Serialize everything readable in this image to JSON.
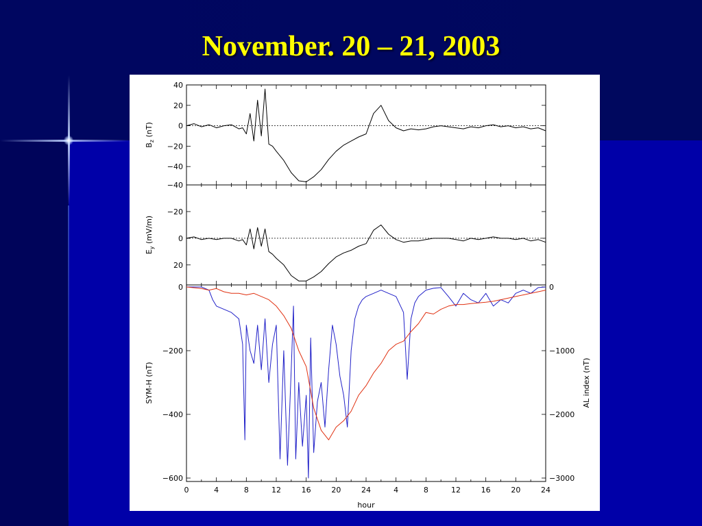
{
  "slide": {
    "title": "November. 20 – 21, 2003"
  },
  "colors": {
    "background": "#0000a8",
    "title": "#ffff00",
    "sym_h_line": "#2020c8",
    "al_index_line": "#e03010",
    "black_line": "#000000"
  },
  "chart_data": [
    {
      "type": "line",
      "panel": "top",
      "ylabel": "B_z (nT)",
      "ylim": [
        -58,
        40
      ],
      "yticks": [
        40,
        20,
        0,
        -20,
        -40
      ],
      "dashed_zero_line": true,
      "series": [
        {
          "x": [
            0,
            1,
            2,
            3,
            4,
            5,
            6,
            7,
            7.5,
            8,
            8.5,
            9,
            9.5,
            10,
            10.5,
            11,
            11.5,
            12,
            13,
            14,
            15,
            16,
            17,
            18,
            19,
            20,
            21,
            22,
            23,
            24,
            25,
            26,
            27,
            28,
            29,
            30,
            31,
            32,
            33,
            34,
            35,
            36,
            37,
            38,
            39,
            40,
            41,
            42,
            43,
            44,
            45,
            46,
            47,
            48
          ],
          "values": [
            0,
            2,
            -1,
            1,
            -2,
            0,
            1,
            -3,
            -2,
            -8,
            12,
            -15,
            25,
            -10,
            36,
            -18,
            -20,
            -25,
            -34,
            -46,
            -54,
            -55,
            -50,
            -43,
            -33,
            -25,
            -19,
            -15,
            -11,
            -8,
            12,
            20,
            5,
            -2,
            -5,
            -3,
            -4,
            -3,
            -1,
            0,
            -1,
            -2,
            -3,
            -1,
            -2,
            0,
            1,
            -1,
            0,
            -2,
            -1,
            -3,
            -2,
            -5
          ]
        }
      ]
    },
    {
      "type": "line",
      "panel": "middle",
      "ylabel": "E_y (mV/m)",
      "ylim": [
        -40,
        35
      ],
      "yticks": [
        -40,
        -20,
        0,
        20
      ],
      "y_inverted": true,
      "dashed_zero_line": true,
      "series": [
        {
          "x": [
            0,
            1,
            2,
            3,
            4,
            5,
            6,
            7,
            7.5,
            8,
            8.5,
            9,
            9.5,
            10,
            10.5,
            11,
            11.5,
            12,
            13,
            14,
            15,
            16,
            17,
            18,
            19,
            20,
            21,
            22,
            23,
            24,
            25,
            26,
            27,
            28,
            29,
            30,
            31,
            32,
            33,
            34,
            35,
            36,
            37,
            38,
            39,
            40,
            41,
            42,
            43,
            44,
            45,
            46,
            47,
            48
          ],
          "values": [
            0,
            -1,
            1,
            0,
            1,
            0,
            0,
            2,
            1,
            5,
            -7,
            8,
            -8,
            6,
            -7,
            10,
            12,
            15,
            20,
            28,
            32,
            32,
            29,
            25,
            19,
            14,
            11,
            9,
            6,
            4,
            -6,
            -10,
            -3,
            1,
            3,
            2,
            2,
            1,
            0,
            0,
            0,
            1,
            2,
            0,
            1,
            0,
            -1,
            0,
            0,
            1,
            0,
            2,
            1,
            3
          ]
        }
      ]
    },
    {
      "type": "line",
      "panel": "bottom",
      "xlabel": "hour",
      "ylabel": "SYM-H (nT)",
      "ylabel_right": "AL index (nT)",
      "xlim": [
        0,
        48
      ],
      "xtick_labels": [
        "0",
        "4",
        "8",
        "12",
        "16",
        "20",
        "24",
        "4",
        "8",
        "12",
        "16",
        "20",
        "24"
      ],
      "ylim_left": [
        -600,
        0
      ],
      "yticks_left": [
        0,
        -200,
        -400,
        -600
      ],
      "ylim_right": [
        -3000,
        0
      ],
      "yticks_right": [
        0,
        -1000,
        -2000,
        -3000
      ],
      "series": [
        {
          "axis": "right",
          "color": "#2020c8",
          "x": [
            0,
            1,
            2,
            3,
            3.5,
            4,
            5,
            6,
            7,
            7.5,
            7.8,
            8,
            8.5,
            9,
            9.5,
            10,
            10.5,
            11,
            11.5,
            12,
            12.5,
            13,
            13.5,
            14,
            14.3,
            14.6,
            15,
            15.5,
            16,
            16.3,
            16.6,
            17,
            17.5,
            18,
            18.5,
            19,
            19.5,
            20,
            20.5,
            21,
            21.5,
            22,
            22.5,
            23,
            23.5,
            24,
            25,
            26,
            27,
            28,
            29,
            29.5,
            30,
            30.5,
            31,
            32,
            33,
            34,
            35,
            36,
            37,
            38,
            39,
            40,
            41,
            42,
            43,
            44,
            45,
            46,
            47,
            48
          ],
          "values": [
            0,
            0,
            0,
            -50,
            -200,
            -300,
            -350,
            -400,
            -500,
            -900,
            -2400,
            -600,
            -1000,
            -1200,
            -600,
            -1300,
            -500,
            -1500,
            -900,
            -600,
            -2700,
            -1000,
            -2800,
            -1300,
            -300,
            -2700,
            -1500,
            -2500,
            -1700,
            -3000,
            -800,
            -2600,
            -1800,
            -1500,
            -2200,
            -1300,
            -600,
            -900,
            -1400,
            -1700,
            -2200,
            -1000,
            -500,
            -300,
            -200,
            -150,
            -100,
            -50,
            -100,
            -150,
            -400,
            -1450,
            -500,
            -250,
            -150,
            -50,
            -20,
            -10,
            -150,
            -300,
            -100,
            -200,
            -250,
            -100,
            -300,
            -200,
            -250,
            -100,
            -50,
            -100,
            -10,
            0
          ]
        },
        {
          "axis": "left",
          "color": "#e03010",
          "x": [
            0,
            2,
            3,
            4,
            5,
            6,
            7,
            8,
            9,
            10,
            11,
            12,
            13,
            14,
            15,
            16,
            17,
            18,
            19,
            20,
            21,
            22,
            23,
            24,
            25,
            26,
            27,
            28,
            29,
            30,
            31,
            32,
            33,
            34,
            35,
            36,
            37,
            38,
            39,
            40,
            41,
            42,
            43,
            44,
            45,
            46,
            47,
            48
          ],
          "values": [
            0,
            -5,
            -10,
            -5,
            -15,
            -20,
            -20,
            -25,
            -20,
            -30,
            -40,
            -60,
            -90,
            -130,
            -200,
            -250,
            -380,
            -450,
            -480,
            -440,
            -420,
            -390,
            -340,
            -310,
            -270,
            -240,
            -200,
            -180,
            -170,
            -140,
            -115,
            -80,
            -85,
            -70,
            -60,
            -55,
            -55,
            -52,
            -50,
            -48,
            -45,
            -40,
            -35,
            -30,
            -25,
            -20,
            -15,
            -10
          ]
        }
      ]
    }
  ]
}
